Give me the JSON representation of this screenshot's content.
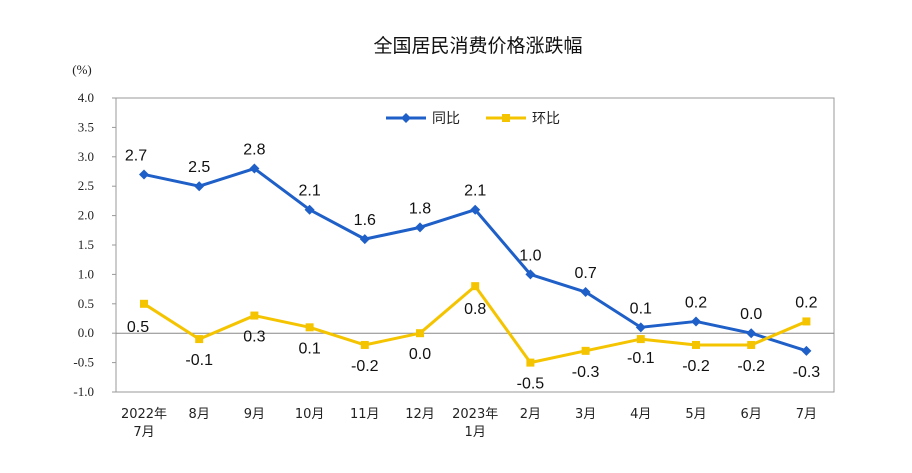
{
  "chart_data": {
    "type": "line",
    "title": "全国居民消费价格涨跌幅",
    "unit_label": "(%)",
    "categories": [
      [
        "2022年",
        "7月"
      ],
      [
        "8月"
      ],
      [
        "9月"
      ],
      [
        "10月"
      ],
      [
        "11月"
      ],
      [
        "12月"
      ],
      [
        "2023年",
        "1月"
      ],
      [
        "2月"
      ],
      [
        "3月"
      ],
      [
        "4月"
      ],
      [
        "5月"
      ],
      [
        "6月"
      ],
      [
        "7月"
      ]
    ],
    "ylim": [
      -1.0,
      4.0
    ],
    "yticks": [
      "-1.0",
      "-0.5",
      "0.0",
      "0.5",
      "1.0",
      "1.5",
      "2.0",
      "2.5",
      "3.0",
      "3.5",
      "4.0"
    ],
    "legend_position": "top-center",
    "series": [
      {
        "name": "同比",
        "color": "#1f5fc8",
        "marker": "diamond",
        "values": [
          2.7,
          2.5,
          2.8,
          2.1,
          1.6,
          1.8,
          2.1,
          1.0,
          0.7,
          0.1,
          0.2,
          0.0,
          -0.3
        ],
        "labels": [
          "2.7",
          "2.5",
          "2.8",
          "2.1",
          "1.6",
          "1.8",
          "2.1",
          "1.0",
          "0.7",
          "0.1",
          "0.2",
          "0.0",
          "-0.3"
        ]
      },
      {
        "name": "环比",
        "color": "#f5c400",
        "marker": "square",
        "values": [
          0.5,
          -0.1,
          0.3,
          0.1,
          -0.2,
          0.0,
          0.8,
          -0.5,
          -0.3,
          -0.1,
          -0.2,
          -0.2,
          0.2
        ],
        "labels": [
          "0.5",
          "-0.1",
          "0.3",
          "0.1",
          "-0.2",
          "0.0",
          "0.8",
          "-0.5",
          "-0.3",
          "-0.1",
          "-0.2",
          "-0.2",
          "0.2"
        ]
      }
    ],
    "grid": false
  }
}
